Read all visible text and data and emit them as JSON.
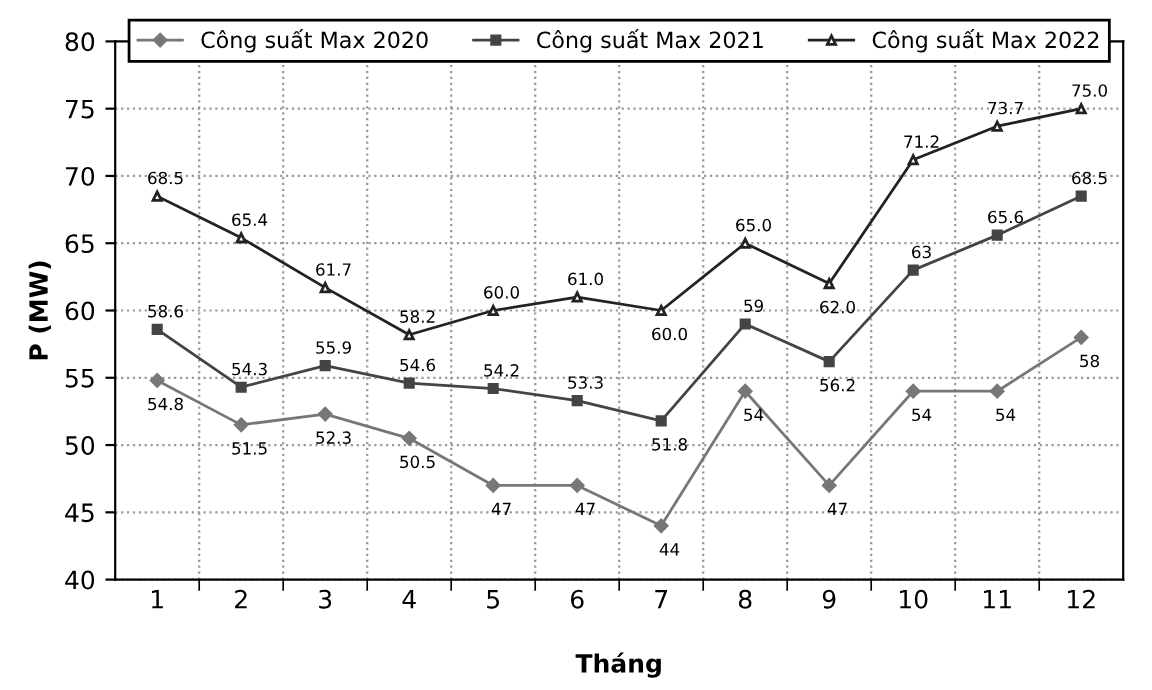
{
  "chart_data": {
    "type": "line",
    "xlabel": "Tháng",
    "ylabel": "P (MW)",
    "categories": [
      "1",
      "2",
      "3",
      "4",
      "5",
      "6",
      "7",
      "8",
      "9",
      "10",
      "11",
      "12"
    ],
    "ylim": [
      40,
      80
    ],
    "yticks": [
      40,
      45,
      50,
      55,
      60,
      65,
      70,
      75,
      80
    ],
    "grid": true,
    "legend": "top",
    "line_style": "solid",
    "series": [
      {
        "name": "Công suất Max 2020",
        "color": "#777777",
        "marker": "diamond",
        "values": [
          54.8,
          51.5,
          52.3,
          50.5,
          47,
          47,
          44,
          54,
          47,
          54,
          54,
          58
        ],
        "value_labels": [
          "54.8",
          "51.5",
          "52.3",
          "50.5",
          "47",
          "47",
          "44",
          "54",
          "47",
          "54",
          "54",
          "58"
        ]
      },
      {
        "name": "Công suất Max 2021",
        "color": "#444444",
        "marker": "square",
        "values": [
          58.6,
          54.3,
          55.9,
          54.6,
          54.2,
          53.3,
          51.8,
          59,
          56.2,
          63,
          65.6,
          68.5
        ],
        "value_labels": [
          "58.6",
          "54.3",
          "55.9",
          "54.6",
          "54.2",
          "53.3",
          "51.8",
          "59",
          "56.2",
          "63",
          "65.6",
          "68.5"
        ]
      },
      {
        "name": "Công suất Max 2022",
        "color": "#222222",
        "marker": "triangle",
        "values": [
          68.5,
          65.4,
          61.7,
          58.2,
          60.0,
          61.0,
          60.0,
          65.0,
          62.0,
          71.2,
          73.7,
          75.0
        ],
        "value_labels": [
          "68.5",
          "65.4",
          "61.7",
          "58.2",
          "60.0",
          "61.0",
          "60.0",
          "65.0",
          "62.0",
          "71.2",
          "73.7",
          "75.0"
        ]
      }
    ]
  }
}
